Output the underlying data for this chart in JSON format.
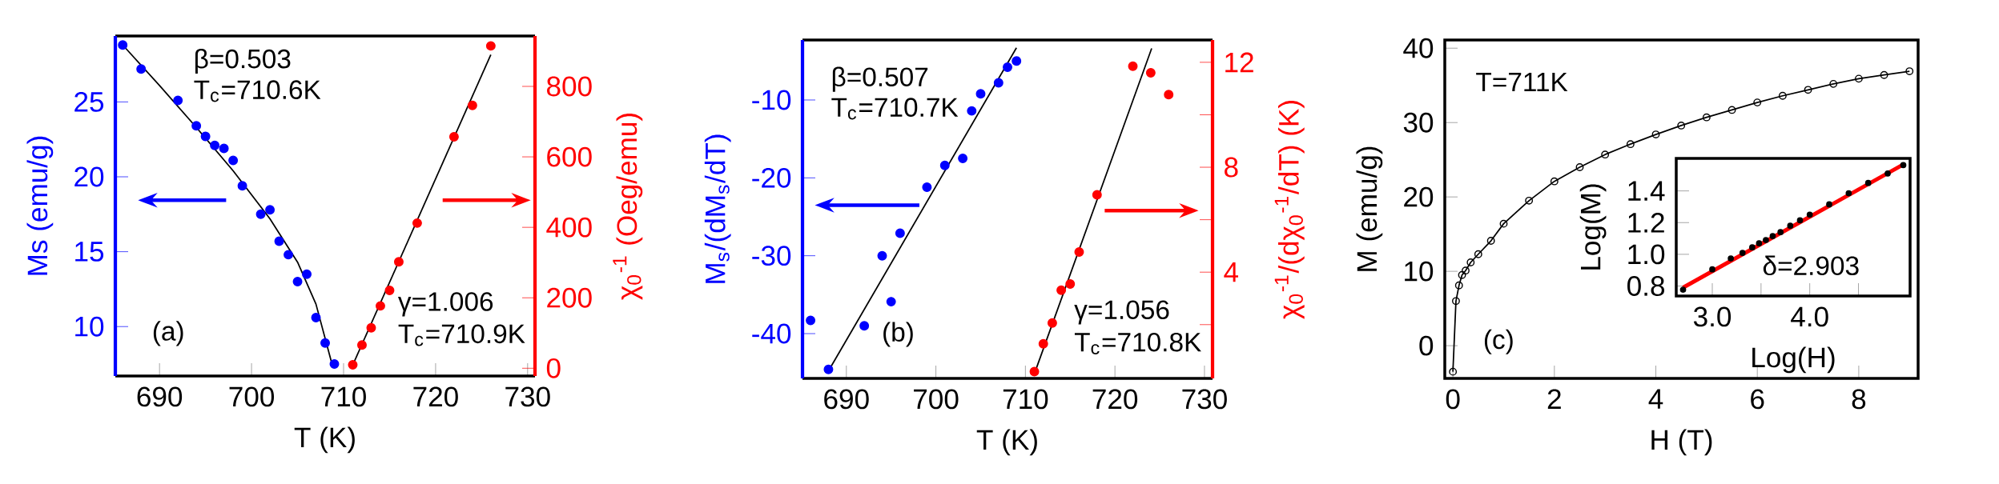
{
  "chart_data": [
    {
      "type": "scatter",
      "xlabel": "T (K)",
      "ylabel": "Ms (emu/g)",
      "y2label": "χ$_{0}$$^{-1}$ (Oeg/emu)",
      "marker": "circle",
      "xlim": [
        685.2,
        730.8
      ],
      "xticks": [
        690,
        700,
        710,
        720,
        730
      ],
      "ylim": [
        6.7,
        29.4
      ],
      "yticks": [
        10,
        15,
        20,
        25
      ],
      "y2lim": [
        -22,
        943
      ],
      "y2ticks": [
        0,
        200,
        400,
        600,
        800
      ],
      "series": [
        {
          "type": "scatter",
          "color": "#0000ff",
          "x": [
            686,
            688,
            692,
            694,
            695,
            696,
            697,
            698,
            699,
            701,
            702,
            703,
            704,
            705,
            706,
            707,
            708,
            709
          ],
          "values": [
            28.8,
            27.2,
            25.1,
            23.4,
            22.7,
            22.1,
            21.9,
            21.1,
            19.4,
            17.5,
            17.8,
            15.7,
            14.8,
            13.0,
            13.5,
            10.6,
            8.9,
            7.5
          ]
        },
        {
          "type": "line",
          "marker": "none",
          "color": "#000000",
          "x": [
            686,
            690,
            694,
            698,
            702,
            705,
            707,
            708.7
          ],
          "values": [
            28.8,
            26.1,
            23.3,
            20.4,
            17.2,
            14.3,
            11.5,
            7.6
          ]
        },
        {
          "type": "scatter",
          "axis": "y2",
          "color": "#ff0000",
          "x": [
            711,
            712,
            713,
            714,
            715,
            716,
            718,
            722,
            724,
            726
          ],
          "values": [
            10,
            66,
            115,
            177,
            221,
            302,
            412,
            657,
            746,
            915
          ]
        },
        {
          "type": "line",
          "axis": "y2",
          "marker": "none",
          "color": "#000000",
          "x": [
            711.1,
            726
          ],
          "values": [
            15,
            890
          ]
        }
      ],
      "annotations": [
        "β=0.503",
        "T$_{c}$=710.6K",
        "(a)",
        "γ=1.006",
        "T$_{c}$=710.9K"
      ]
    },
    {
      "type": "scatter",
      "xlabel": "T (K)",
      "ylabel": "M$_{s}$/(dM$_{s}$/dT)",
      "y2label": "χ$_{0}$$^{-1}$/(dχ$_{0}$$^{-1}$/dT) (K)",
      "marker": "circle",
      "xlim": [
        685.1,
        730.9
      ],
      "xticks": [
        690,
        700,
        710,
        720,
        730
      ],
      "ylim": [
        -45.75,
        -2.3
      ],
      "yticks": [
        -40,
        -30,
        -20,
        -10
      ],
      "y2lim": [
        -0.05,
        12.85
      ],
      "y2ticks": [
        {
          "value": 2,
          "label": null
        },
        4,
        {
          "value": 6,
          "label": null
        },
        8,
        {
          "value": 10,
          "label": null
        },
        12
      ],
      "series": [
        {
          "type": "scatter",
          "color": "#0000ff",
          "x": [
            686,
            688,
            692,
            694,
            695,
            696,
            699,
            701,
            703,
            704,
            705,
            707,
            708,
            709
          ],
          "values": [
            -38.3,
            -44.6,
            -39.0,
            -30.0,
            -35.9,
            -27.1,
            -21.2,
            -18.4,
            -17.5,
            -11.4,
            -9.2,
            -7.8,
            -5.8,
            -5.0
          ]
        },
        {
          "type": "line",
          "marker": "none",
          "color": "#000000",
          "x": [
            688.1,
            709.0
          ],
          "values": [
            -44.6,
            -3.3
          ]
        },
        {
          "type": "scatter",
          "axis": "y2",
          "color": "#ff0000",
          "x": [
            711,
            712,
            713,
            714,
            715,
            716,
            718,
            722,
            724,
            726
          ],
          "values": [
            0.21,
            1.27,
            2.06,
            3.31,
            3.55,
            4.77,
            6.95,
            11.85,
            11.6,
            10.77
          ]
        },
        {
          "type": "line",
          "axis": "y2",
          "marker": "none",
          "color": "#000000",
          "x": [
            711.1,
            724.1
          ],
          "values": [
            0.22,
            12.53
          ]
        }
      ],
      "annotations": [
        "β=0.507",
        "T$_{c}$=710.7K",
        "(b)",
        "γ=1.056",
        "T$_{c}$=710.8K"
      ]
    },
    {
      "type": "line",
      "xlabel": "H (T)",
      "ylabel": "M (emu/g)",
      "marker": "circle",
      "xlim": [
        -0.16,
        9.17
      ],
      "xticks": [
        0,
        2,
        4,
        6,
        8
      ],
      "ylim": [
        -4.4,
        41.1
      ],
      "yticks": [
        0,
        10,
        20,
        30,
        40
      ],
      "series": [
        {
          "color": "#000000",
          "x": [
            0,
            0.06,
            0.12,
            0.18,
            0.25,
            0.35,
            0.5,
            0.75,
            1,
            1.5,
            2,
            2.5,
            3,
            3.5,
            4,
            4.5,
            5,
            5.5,
            6,
            6.5,
            7,
            7.5,
            8,
            8.5,
            9
          ],
          "values": [
            -3.5,
            6.0,
            8.1,
            9.5,
            10.1,
            11.2,
            12.3,
            14.1,
            16.4,
            19.5,
            22.1,
            24.0,
            25.7,
            27.1,
            28.4,
            29.6,
            30.7,
            31.7,
            32.7,
            33.6,
            34.4,
            35.2,
            35.9,
            36.4,
            36.9
          ]
        }
      ],
      "annotations": [
        "T=711K",
        "(c)"
      ]
    },
    {
      "type": "scatter",
      "xlabel": "Log(H)",
      "ylabel": "Log(M)",
      "marker": "circle",
      "xlim": [
        2.63,
        5.03
      ],
      "xticks": [
        {
          "value": 3,
          "label": "3.0"
        },
        {
          "value": 3.5,
          "label": null
        },
        {
          "value": 4,
          "label": "4.0"
        },
        {
          "value": 4.5,
          "label": null
        }
      ],
      "ylim": [
        0.737,
        1.605
      ],
      "yticks": [
        0.8,
        {
          "value": 1,
          "label": "1.0"
        },
        1.2,
        1.4
      ],
      "series": [
        {
          "color": "#000000",
          "x": [
            2.7,
            3.0,
            3.19,
            3.31,
            3.41,
            3.48,
            3.55,
            3.62,
            3.7,
            3.8,
            3.9,
            4.0,
            4.2,
            4.4,
            4.6,
            4.8,
            4.96
          ],
          "values": [
            0.777,
            0.905,
            0.974,
            1.009,
            1.044,
            1.07,
            1.09,
            1.115,
            1.14,
            1.18,
            1.215,
            1.25,
            1.315,
            1.385,
            1.45,
            1.51,
            1.563
          ]
        },
        {
          "type": "line",
          "marker": "none",
          "color": "#ff0000",
          "x": [
            2.7,
            4.96
          ],
          "values": [
            0.79,
            1.567
          ]
        }
      ],
      "annotations": [
        "δ=2.903"
      ]
    }
  ]
}
